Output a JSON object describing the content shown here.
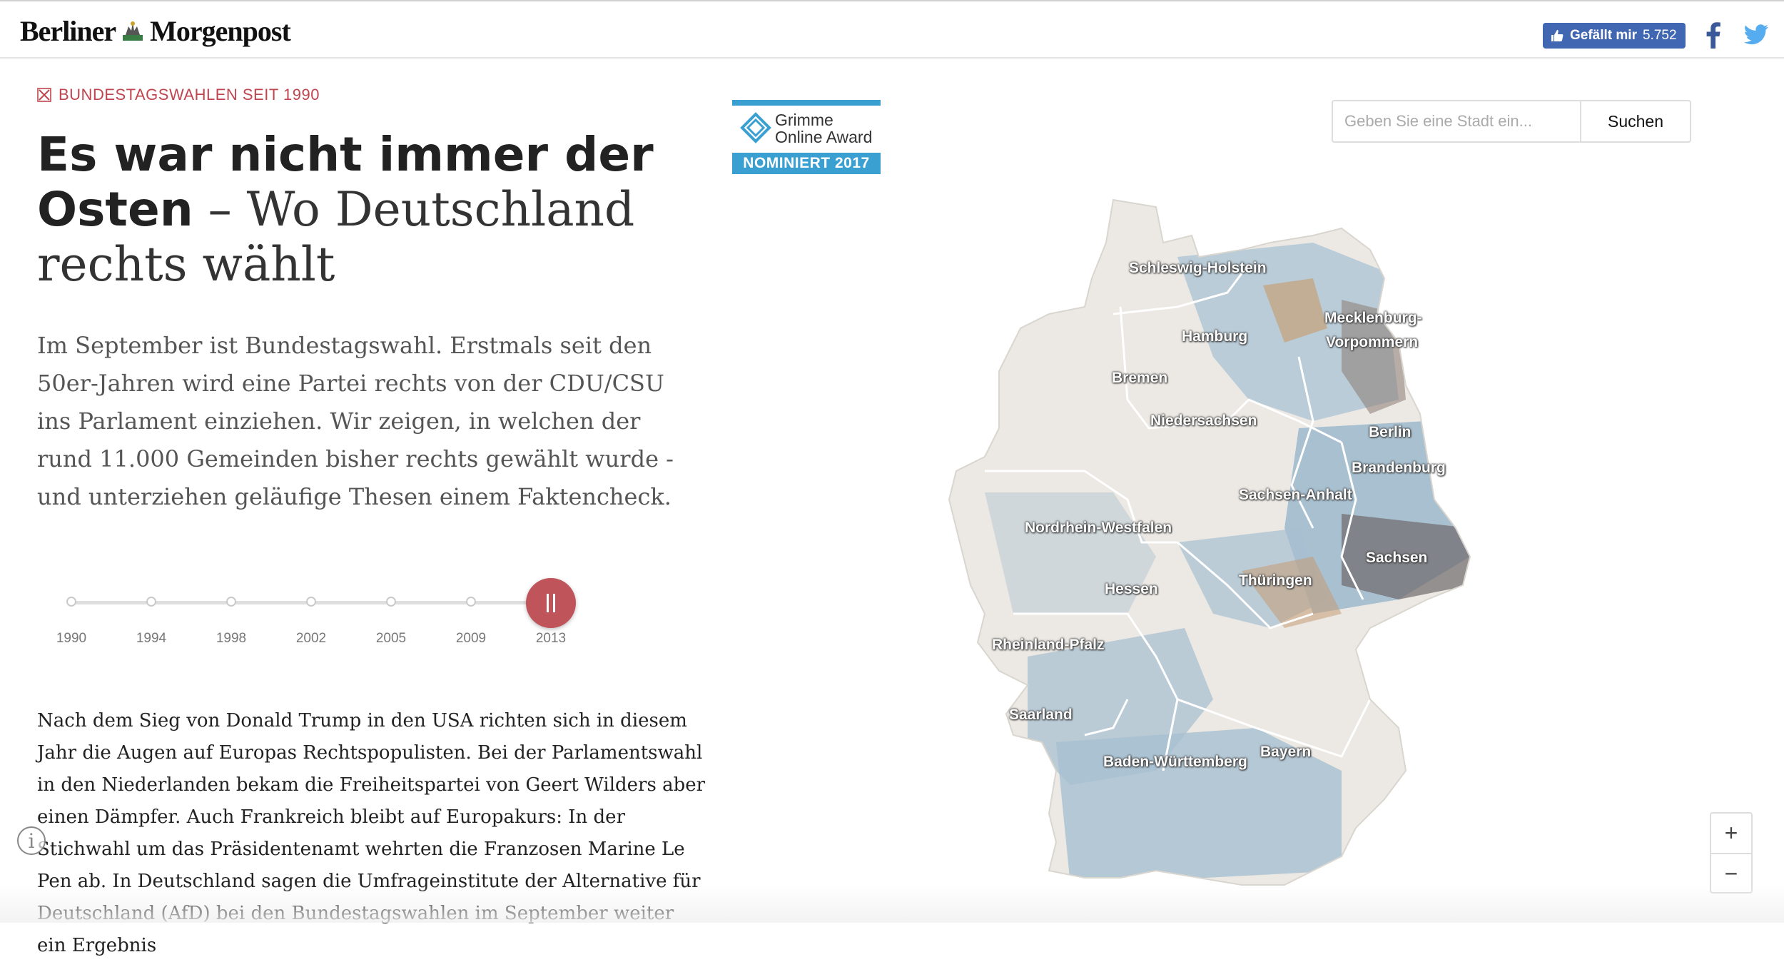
{
  "header": {
    "logo_left": "Berliner",
    "logo_right": "Morgenpost",
    "fb_like_label": "Gefällt mir",
    "fb_like_count": "5.752"
  },
  "article": {
    "kicker": "BUNDESTAGSWAHLEN SEIT 1990",
    "title_strong": "Es war nicht immer der Osten",
    "title_light": " – Wo Deutschland rechts wählt",
    "lead": "Im September ist Bundestagswahl. Erstmals seit den 50er-Jahren wird eine Partei rechts von der CDU/CSU ins Parlament einziehen. Wir zeigen, in welchen der rund 11.000 Gemeinden bisher rechts gewählt wurde - und unterziehen geläufige Thesen einem Faktencheck.",
    "body": "Nach dem Sieg von Donald Trump in den USA richten sich in diesem Jahr die Augen auf Europas Rechtspopulisten. Bei der Parlamentswahl in den Niederlanden bekam die Freiheitspartei von Geert Wilders aber einen Dämpfer. Auch Frankreich bleibt auf Europakurs: In der Stichwahl um das Präsidentenamt wehrten die Franzosen Marine Le Pen ab. In Deutschland sagen die Umfrageinstitute der Alternative für Deutschland (AfD) bei den Bundestagswahlen im September weiter ein Ergebnis"
  },
  "timeline": {
    "years": [
      "1990",
      "1994",
      "1998",
      "2002",
      "2005",
      "2009",
      "2013"
    ],
    "selected_index": 6
  },
  "award": {
    "line1": "Grimme",
    "line2": "Online Award",
    "badge": "NOMINIERT 2017"
  },
  "search": {
    "placeholder": "Geben Sie eine Stadt ein...",
    "button_label": "Suchen"
  },
  "map": {
    "states": [
      "Schleswig-Holstein",
      "Hamburg",
      "Mecklenburg-",
      "Vorpommern",
      "Bremen",
      "Niedersachsen",
      "Berlin",
      "Brandenburg",
      "Sachsen-Anhalt",
      "Nordrhein-Westfalen",
      "Sachsen",
      "Hessen",
      "Thüringen",
      "Rheinland-Pfalz",
      "Saarland",
      "Bayern",
      "Baden-Württemberg"
    ],
    "zoom_in": "+",
    "zoom_out": "−"
  },
  "colors": {
    "accent": "#c0545b",
    "facebook": "#4267b2",
    "twitter": "#55acee",
    "award_blue": "#3a9fd1"
  }
}
